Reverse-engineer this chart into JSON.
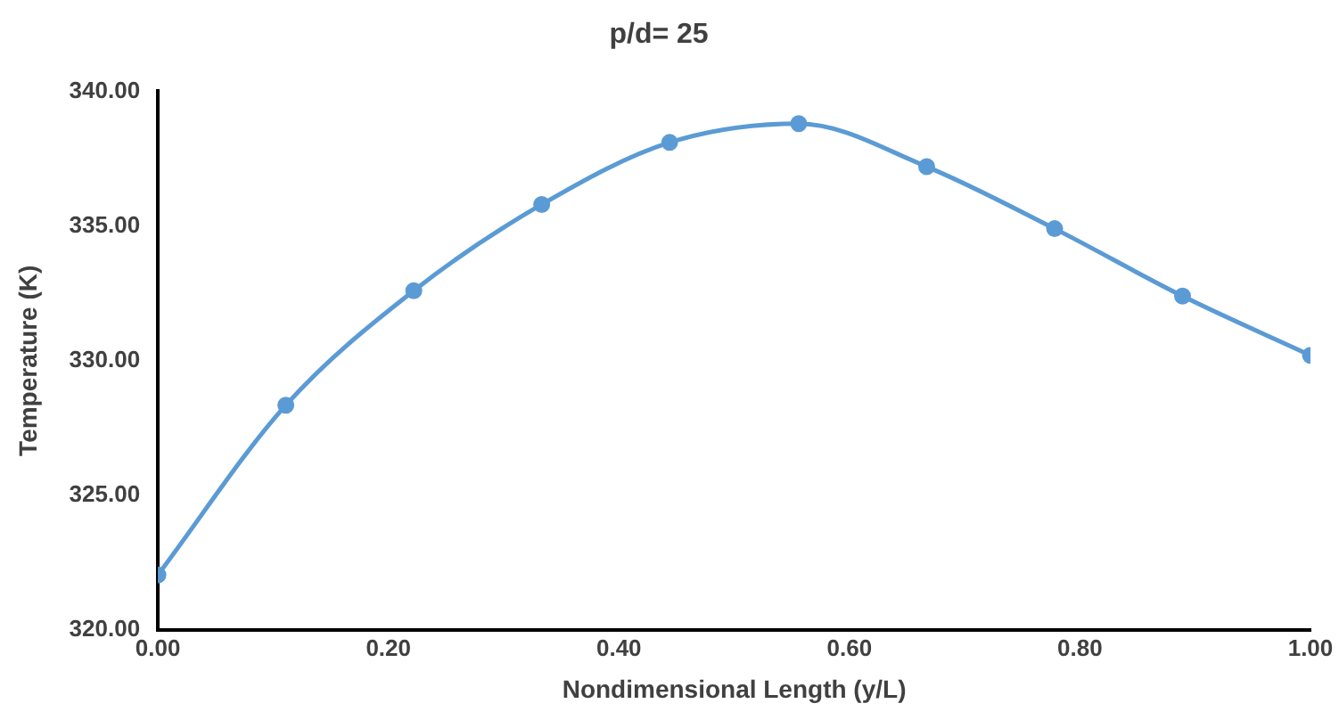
{
  "chart_data": {
    "type": "line",
    "title": "p/d= 25",
    "xlabel": "Nondimensional Length (y/L)",
    "ylabel": "Temperature (K)",
    "x": [
      0,
      0.111,
      0.222,
      0.333,
      0.444,
      0.556,
      0.667,
      0.778,
      0.889,
      1
    ],
    "series": [
      {
        "color": "#5b9bd5",
        "values": [
          322.05,
          328.35,
          332.6,
          335.8,
          338.1,
          338.8,
          337.2,
          334.9,
          332.4,
          330.2
        ]
      }
    ],
    "xlim": [
      0,
      1
    ],
    "xticks": [
      {
        "value": 0,
        "label": "0.00"
      },
      {
        "value": 0.2,
        "label": "0.20"
      },
      {
        "value": 0.4,
        "label": "0.40"
      },
      {
        "value": 0.6,
        "label": "0.60"
      },
      {
        "value": 0.8,
        "label": "0.80"
      },
      {
        "value": 1,
        "label": "1.00"
      }
    ],
    "ylim": [
      320,
      340
    ],
    "yticks": [
      {
        "value": 320,
        "label": "320.00"
      },
      {
        "value": 325,
        "label": "325.00"
      },
      {
        "value": 330,
        "label": "330.00"
      },
      {
        "value": 335,
        "label": "335.00"
      },
      {
        "value": 340,
        "label": "340.00"
      }
    ],
    "grid": false,
    "legend": false,
    "marker": "circle",
    "line_style": "solid"
  }
}
